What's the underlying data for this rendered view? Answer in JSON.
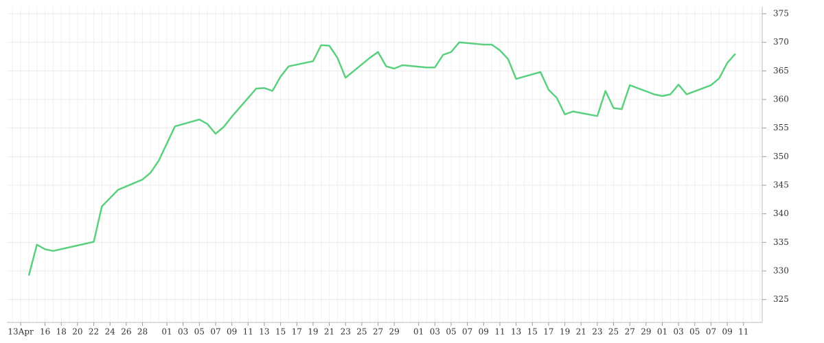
{
  "chart_data": {
    "type": "line",
    "color": "#5ad07f",
    "x": [
      1,
      2,
      3,
      4,
      9,
      10,
      12,
      15,
      16,
      17,
      19,
      22,
      23,
      24,
      25,
      26,
      29,
      30,
      31,
      32,
      33,
      36,
      37,
      38,
      39,
      40,
      43,
      44,
      45,
      46,
      47,
      50,
      51,
      52,
      53,
      54,
      57,
      58,
      59,
      60,
      61,
      64,
      65,
      66,
      67,
      68,
      71,
      72,
      73,
      74,
      75,
      78,
      79,
      80,
      81,
      82,
      85,
      86,
      87,
      88
    ],
    "values": [
      329.2,
      334.6,
      333.8,
      333.5,
      335.1,
      341.3,
      344.2,
      346.0,
      347.2,
      349.3,
      355.3,
      356.5,
      355.7,
      354.0,
      355.2,
      357.0,
      361.9,
      362.0,
      361.5,
      364.0,
      365.8,
      366.7,
      369.5,
      369.4,
      367.3,
      363.8,
      367.3,
      368.3,
      365.8,
      365.4,
      366.0,
      365.6,
      365.6,
      367.8,
      368.3,
      370.0,
      369.6,
      369.6,
      368.6,
      367.1,
      363.6,
      364.8,
      361.7,
      360.3,
      357.4,
      357.9,
      357.1,
      361.5,
      358.5,
      358.3,
      362.5,
      360.9,
      360.6,
      360.9,
      362.6,
      360.9,
      362.5,
      363.7,
      366.4,
      368.0
    ],
    "xlim": [
      -1.7,
      91.3
    ],
    "xticks": [
      {
        "value": 0,
        "label": "13Apr"
      },
      {
        "value": 3,
        "label": "16"
      },
      {
        "value": 5,
        "label": "18"
      },
      {
        "value": 7,
        "label": "20"
      },
      {
        "value": 9,
        "label": "22"
      },
      {
        "value": 11,
        "label": "24"
      },
      {
        "value": 13,
        "label": "26"
      },
      {
        "value": 15,
        "label": "28"
      },
      {
        "value": 18,
        "label": "01"
      },
      {
        "value": 20,
        "label": "03"
      },
      {
        "value": 22,
        "label": "05"
      },
      {
        "value": 24,
        "label": "07"
      },
      {
        "value": 26,
        "label": "09"
      },
      {
        "value": 28,
        "label": "11"
      },
      {
        "value": 30,
        "label": "13"
      },
      {
        "value": 32,
        "label": "15"
      },
      {
        "value": 34,
        "label": "17"
      },
      {
        "value": 36,
        "label": "19"
      },
      {
        "value": 38,
        "label": "21"
      },
      {
        "value": 40,
        "label": "23"
      },
      {
        "value": 42,
        "label": "25"
      },
      {
        "value": 44,
        "label": "27"
      },
      {
        "value": 46,
        "label": "29"
      },
      {
        "value": 49,
        "label": "01"
      },
      {
        "value": 51,
        "label": "03"
      },
      {
        "value": 53,
        "label": "05"
      },
      {
        "value": 55,
        "label": "07"
      },
      {
        "value": 57,
        "label": "09"
      },
      {
        "value": 59,
        "label": "11"
      },
      {
        "value": 61,
        "label": "13"
      },
      {
        "value": 63,
        "label": "15"
      },
      {
        "value": 65,
        "label": "17"
      },
      {
        "value": 67,
        "label": "19"
      },
      {
        "value": 69,
        "label": "21"
      },
      {
        "value": 71,
        "label": "23"
      },
      {
        "value": 73,
        "label": "25"
      },
      {
        "value": 75,
        "label": "27"
      },
      {
        "value": 77,
        "label": "29"
      },
      {
        "value": 79,
        "label": "01"
      },
      {
        "value": 81,
        "label": "03"
      },
      {
        "value": 83,
        "label": "05"
      },
      {
        "value": 85,
        "label": "07"
      },
      {
        "value": 87,
        "label": "09"
      },
      {
        "value": 89,
        "label": "11"
      }
    ],
    "ylim": [
      321,
      376.2
    ],
    "yticks": [
      325,
      330,
      335,
      340,
      345,
      350,
      355,
      360,
      365,
      370,
      375
    ],
    "grid": true
  }
}
